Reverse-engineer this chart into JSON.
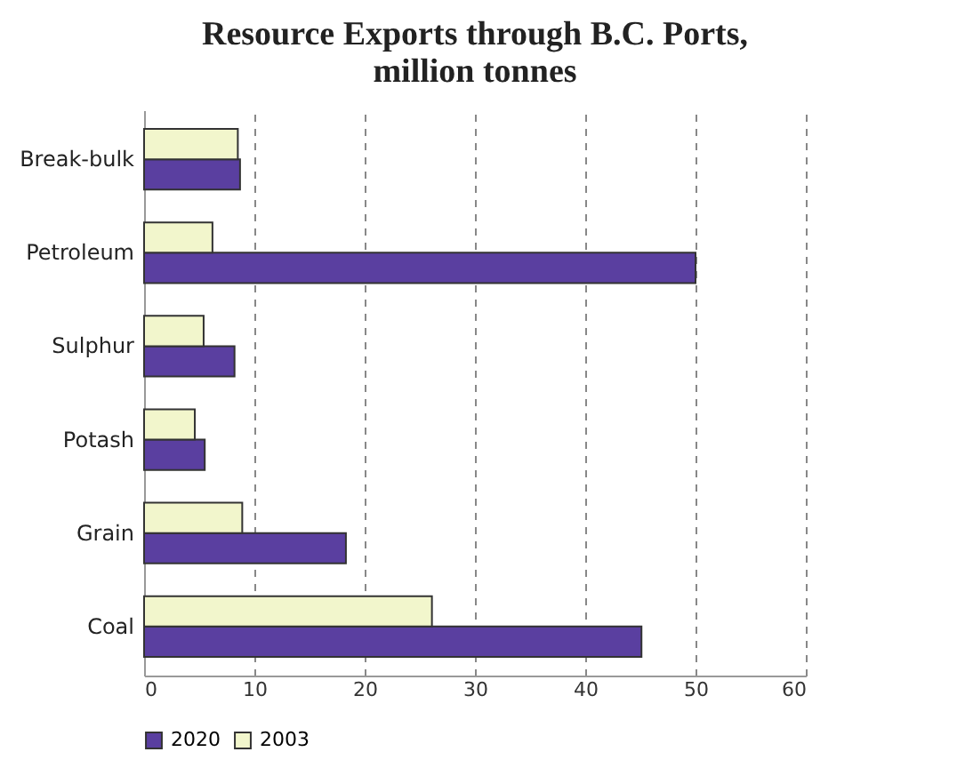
{
  "chart_data": {
    "type": "bar",
    "orientation": "horizontal",
    "title": "Resource Exports through B.C. Ports,\nmillion tonnes",
    "categories": [
      "Break-bulk",
      "Petroleum",
      "Sulphur",
      "Potash",
      "Grain",
      "Coal"
    ],
    "series": [
      {
        "name": "2020",
        "color": "#5a3fa0",
        "values": [
          8.7,
          50,
          8.2,
          5.5,
          18.3,
          45.1
        ]
      },
      {
        "name": "2003",
        "color": "#f2f6cc",
        "values": [
          8.5,
          6.2,
          5.4,
          4.6,
          8.9,
          26.1
        ]
      }
    ],
    "xlim": [
      0,
      60
    ],
    "xticks": [
      0,
      10,
      20,
      30,
      40,
      50,
      60
    ],
    "grid": "x",
    "legend": "bottom"
  }
}
